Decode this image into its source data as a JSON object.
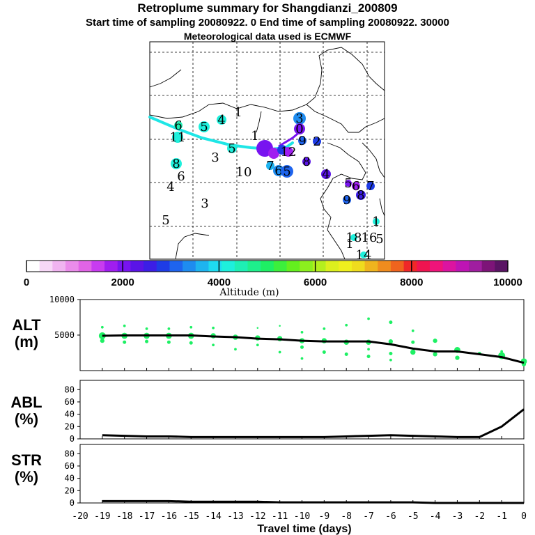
{
  "header": {
    "title": "Retroplume summary for Shangdianzi_200809",
    "subtitle": "Start time of sampling 20080922.    0     End time of sampling 20080922. 30000",
    "met_line": "Meteorological data used is ECMWF"
  },
  "colorbar": {
    "label": "Altitude (m)",
    "ticks": [
      "0",
      "2000",
      "4000",
      "6000",
      "8000",
      "10000"
    ],
    "colors": [
      "#ffffff",
      "#f7d8f7",
      "#f0b4f0",
      "#ea8cea",
      "#e164e6",
      "#c83cf0",
      "#a01ef0",
      "#7814f0",
      "#5a14e6",
      "#3c1ee6",
      "#1e3ce6",
      "#1e64ee",
      "#1e8cf0",
      "#1eb4f0",
      "#1edcf0",
      "#1ef0dc",
      "#1ef0b4",
      "#1ef08c",
      "#1ef064",
      "#3cf03c",
      "#64f01e",
      "#8cf01e",
      "#b4f01e",
      "#dcf01e",
      "#f0f01e",
      "#f0dc1e",
      "#f0b41e",
      "#f08c1e",
      "#f0641e",
      "#f02828",
      "#f01450",
      "#f0147a",
      "#dc14a0",
      "#be14b4",
      "#a01ea0",
      "#7d1478",
      "#5a1464"
    ]
  },
  "map": {
    "labels": [
      {
        "t": "3",
        "x": 430,
        "y": 170,
        "c": "#1e8cf0",
        "r": 9
      },
      {
        "t": "0",
        "x": 430,
        "y": 185,
        "c": "#7814f0",
        "r": 8
      },
      {
        "t": "1",
        "x": 342,
        "y": 161,
        "c": "",
        "r": 0
      },
      {
        "t": "4",
        "x": 318,
        "y": 172,
        "c": "#1ef0dc",
        "r": 7
      },
      {
        "t": "5",
        "x": 293,
        "y": 182,
        "c": "#1ef0dc",
        "r": 8
      },
      {
        "t": "6",
        "x": 256,
        "y": 180,
        "c": "#1ef0b4",
        "r": 6
      },
      {
        "t": "11",
        "x": 255,
        "y": 197,
        "c": "#1ef0dc",
        "r": 8
      },
      {
        "t": "1",
        "x": 366,
        "y": 195,
        "c": "",
        "r": 0
      },
      {
        "t": "5",
        "x": 333,
        "y": 213,
        "c": "#1ef0dc",
        "r": 7
      },
      {
        "t": "2",
        "x": 455,
        "y": 203,
        "c": "#1e3ce6",
        "r": 6
      },
      {
        "t": "9",
        "x": 434,
        "y": 202,
        "c": "#1e64ee",
        "r": 6
      },
      {
        "t": "3",
        "x": 309,
        "y": 226,
        "c": "",
        "r": 0
      },
      {
        "t": "10",
        "x": 350,
        "y": 247,
        "c": "",
        "r": 0
      },
      {
        "t": "8",
        "x": 253,
        "y": 235,
        "c": "#1ef0dc",
        "r": 8
      },
      {
        "t": "6",
        "x": 260,
        "y": 253,
        "c": "",
        "r": 0
      },
      {
        "t": "4",
        "x": 245,
        "y": 268,
        "c": "",
        "r": 0
      },
      {
        "t": "3",
        "x": 294,
        "y": 292,
        "c": "",
        "r": 0
      },
      {
        "t": "5",
        "x": 238,
        "y": 316,
        "c": "",
        "r": 0
      },
      {
        "t": "12",
        "x": 414,
        "y": 218,
        "c": "#a01ef0",
        "r": 7
      },
      {
        "t": "8",
        "x": 440,
        "y": 232,
        "c": "#5a14e6",
        "r": 6
      },
      {
        "t": "7",
        "x": 388,
        "y": 238,
        "c": "#1eb4f0",
        "r": 6
      },
      {
        "t": "6",
        "x": 400,
        "y": 245,
        "c": "#1e8cf0",
        "r": 8
      },
      {
        "t": "5",
        "x": 412,
        "y": 246,
        "c": "#1e64ee",
        "r": 9
      },
      {
        "t": "4",
        "x": 468,
        "y": 250,
        "c": "#5a14e6",
        "r": 7
      },
      {
        "t": "5",
        "x": 500,
        "y": 263,
        "c": "#7814f0",
        "r": 5
      },
      {
        "t": "6",
        "x": 511,
        "y": 267,
        "c": "#a01ef0",
        "r": 6
      },
      {
        "t": "7",
        "x": 532,
        "y": 267,
        "c": "#1e3ce6",
        "r": 6
      },
      {
        "t": "8",
        "x": 518,
        "y": 280,
        "c": "#3c1ee6",
        "r": 7
      },
      {
        "t": "9",
        "x": 498,
        "y": 287,
        "c": "#1e64ee",
        "r": 6
      },
      {
        "t": "1",
        "x": 540,
        "y": 318,
        "c": "#1ef0dc",
        "r": 5
      },
      {
        "t": "18",
        "x": 508,
        "y": 341,
        "c": "#1ef0dc",
        "r": 5
      },
      {
        "t": "16",
        "x": 530,
        "y": 341,
        "c": "",
        "r": 0
      },
      {
        "t": "5",
        "x": 545,
        "y": 343,
        "c": "",
        "r": 0
      },
      {
        "t": "1",
        "x": 502,
        "y": 350,
        "c": "",
        "r": 0
      },
      {
        "t": "14",
        "x": 522,
        "y": 366,
        "c": "#1ef0dc",
        "r": 5
      }
    ]
  },
  "chart_data": [
    {
      "type": "scatter",
      "title": "ALT (m)",
      "ylabel": "ALT (m)",
      "ylim": [
        0,
        10000
      ],
      "yticks": [
        "10000",
        "5000"
      ],
      "yticklabels": [
        10000,
        5000
      ],
      "x": [
        -19,
        -18,
        -17,
        -16,
        -15,
        -14,
        -13,
        -12,
        -11,
        -10,
        -9,
        -8,
        -7,
        -6,
        -5,
        -4,
        -3,
        -2,
        -1,
        0
      ],
      "series": [
        {
          "name": "median altitude",
          "values": [
            4900,
            4950,
            4950,
            4950,
            4950,
            4800,
            4700,
            4500,
            4400,
            4200,
            4100,
            4100,
            4100,
            3700,
            3100,
            2700,
            2700,
            2300,
            1900,
            1100
          ]
        }
      ],
      "points": [
        {
          "x": -19,
          "y": 4900,
          "s": 8
        },
        {
          "x": -19,
          "y": 4200,
          "s": 5
        },
        {
          "x": -19,
          "y": 6100,
          "s": 3
        },
        {
          "x": -18,
          "y": 4900,
          "s": 7
        },
        {
          "x": -18,
          "y": 4000,
          "s": 4
        },
        {
          "x": -18,
          "y": 6300,
          "s": 3
        },
        {
          "x": -17,
          "y": 4900,
          "s": 7
        },
        {
          "x": -17,
          "y": 4100,
          "s": 4
        },
        {
          "x": -17,
          "y": 5900,
          "s": 3
        },
        {
          "x": -16,
          "y": 4900,
          "s": 7
        },
        {
          "x": -16,
          "y": 4000,
          "s": 4
        },
        {
          "x": -16,
          "y": 5900,
          "s": 3
        },
        {
          "x": -15,
          "y": 4900,
          "s": 7
        },
        {
          "x": -15,
          "y": 3900,
          "s": 4
        },
        {
          "x": -15,
          "y": 6100,
          "s": 3
        },
        {
          "x": -14,
          "y": 4900,
          "s": 6
        },
        {
          "x": -14,
          "y": 3600,
          "s": 3
        },
        {
          "x": -14,
          "y": 6000,
          "s": 3
        },
        {
          "x": -13,
          "y": 4700,
          "s": 6
        },
        {
          "x": -13,
          "y": 3000,
          "s": 3
        },
        {
          "x": -12,
          "y": 4600,
          "s": 6
        },
        {
          "x": -12,
          "y": 3600,
          "s": 3
        },
        {
          "x": -12,
          "y": 6000,
          "s": 2
        },
        {
          "x": -11,
          "y": 4500,
          "s": 6
        },
        {
          "x": -11,
          "y": 2600,
          "s": 3
        },
        {
          "x": -11,
          "y": 6300,
          "s": 2
        },
        {
          "x": -10,
          "y": 4200,
          "s": 6
        },
        {
          "x": -10,
          "y": 3300,
          "s": 4
        },
        {
          "x": -10,
          "y": 5400,
          "s": 3
        },
        {
          "x": -10,
          "y": 1700,
          "s": 3
        },
        {
          "x": -9,
          "y": 4200,
          "s": 6
        },
        {
          "x": -9,
          "y": 2600,
          "s": 4
        },
        {
          "x": -9,
          "y": 5900,
          "s": 3
        },
        {
          "x": -8,
          "y": 4000,
          "s": 6
        },
        {
          "x": -8,
          "y": 2300,
          "s": 4
        },
        {
          "x": -8,
          "y": 6400,
          "s": 3
        },
        {
          "x": -7,
          "y": 4000,
          "s": 6
        },
        {
          "x": -7,
          "y": 2000,
          "s": 4
        },
        {
          "x": -7,
          "y": 7300,
          "s": 3
        },
        {
          "x": -7,
          "y": 3000,
          "s": 3
        },
        {
          "x": -6,
          "y": 4100,
          "s": 5
        },
        {
          "x": -6,
          "y": 2400,
          "s": 4
        },
        {
          "x": -6,
          "y": 6800,
          "s": 4
        },
        {
          "x": -6,
          "y": 1500,
          "s": 3
        },
        {
          "x": -5,
          "y": 2600,
          "s": 6
        },
        {
          "x": -5,
          "y": 4000,
          "s": 4
        },
        {
          "x": -5,
          "y": 5600,
          "s": 3
        },
        {
          "x": -4,
          "y": 2300,
          "s": 5
        },
        {
          "x": -4,
          "y": 4200,
          "s": 5
        },
        {
          "x": -3,
          "y": 2900,
          "s": 7
        },
        {
          "x": -3,
          "y": 1800,
          "s": 5
        },
        {
          "x": -2,
          "y": 2400,
          "s": 4
        },
        {
          "x": -1,
          "y": 2100,
          "s": 8
        },
        {
          "x": -1,
          "y": 2700,
          "s": 3
        },
        {
          "x": 0,
          "y": 1300,
          "s": 7
        },
        {
          "x": 0,
          "y": 900,
          "s": 5
        }
      ]
    },
    {
      "type": "line",
      "title": "ABL (%)",
      "ylabel": "ABL (%)",
      "ylim": [
        0,
        95
      ],
      "yticks": [
        "80",
        "60",
        "40",
        "20",
        "0"
      ],
      "yticklabels": [
        80,
        60,
        40,
        20,
        0
      ],
      "x": [
        -19,
        -18,
        -17,
        -16,
        -15,
        -14,
        -13,
        -12,
        -11,
        -10,
        -9,
        -8,
        -7,
        -6,
        -5,
        -4,
        -3,
        -2,
        -1,
        0
      ],
      "values": [
        6,
        5,
        4,
        4,
        3,
        3,
        3,
        3,
        3,
        3,
        3,
        4,
        5,
        6,
        5,
        4,
        3,
        3,
        20,
        48
      ]
    },
    {
      "type": "line",
      "title": "STR (%)",
      "ylabel": "STR (%)",
      "ylim": [
        0,
        95
      ],
      "yticks": [
        "80",
        "60",
        "40",
        "20",
        "0"
      ],
      "yticklabels": [
        80,
        60,
        40,
        20,
        0
      ],
      "x": [
        -19,
        -18,
        -17,
        -16,
        -15,
        -14,
        -13,
        -12,
        -11,
        -10,
        -9,
        -8,
        -7,
        -6,
        -5,
        -4,
        -3,
        -2,
        -1,
        0
      ],
      "values": [
        3,
        3,
        3,
        3,
        2,
        2,
        2,
        2,
        1,
        1,
        1,
        1,
        1,
        1,
        1,
        0,
        0,
        0,
        0,
        0
      ]
    }
  ],
  "xaxis": {
    "label": "Travel time (days)",
    "ticks": [
      "-20",
      "-19",
      "-18",
      "-17",
      "-16",
      "-15",
      "-14",
      "-13",
      "-12",
      "-11",
      "-10",
      "-9",
      "-8",
      "-7",
      "-6",
      "-5",
      "-4",
      "-3",
      "-2",
      "-1",
      "0"
    ]
  },
  "panel_labels": {
    "alt": [
      "ALT",
      "(m)"
    ],
    "abl": [
      "ABL",
      "(%)"
    ],
    "str": [
      "STR",
      "(%)"
    ]
  }
}
